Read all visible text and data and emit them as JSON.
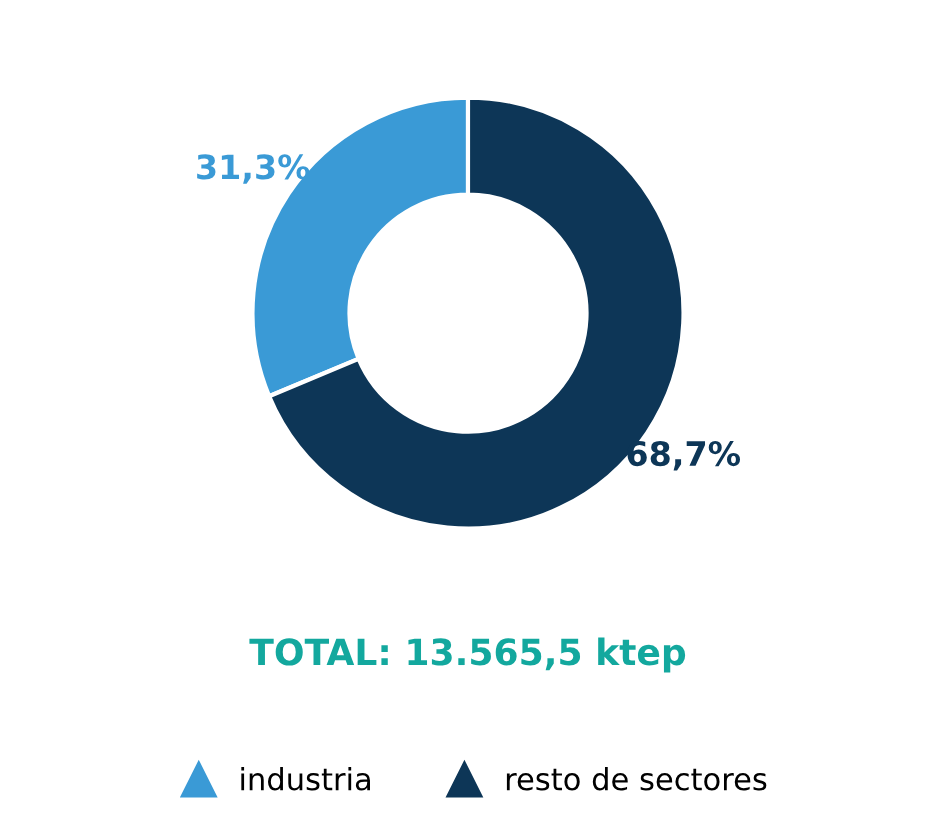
{
  "chart_data": {
    "type": "donut",
    "categories": [
      "industria",
      "resto de sectores"
    ],
    "values": [
      31.3,
      68.7
    ],
    "colors": [
      "#3a9ad6",
      "#0d3657"
    ],
    "value_labels": [
      "31,3%",
      "68,7%"
    ],
    "annotations": [
      "TOTAL: 13.565,5 ktep"
    ],
    "legend": "bottom",
    "marker": "triangle"
  }
}
